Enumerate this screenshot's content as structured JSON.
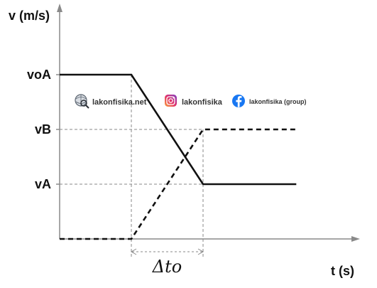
{
  "chart_data": {
    "type": "line",
    "title": "",
    "xlabel": "t (s)",
    "ylabel": "v (m/s)",
    "y_ticks": [
      "voA",
      "vB",
      "vA"
    ],
    "y_tick_values": [
      3,
      2,
      1
    ],
    "ylim": [
      0,
      3.5
    ],
    "xlim": [
      0,
      4.3
    ],
    "interval_label": "Δto",
    "interval": [
      1,
      2
    ],
    "grid": false,
    "series": [
      {
        "style": "solid",
        "color": "#111111",
        "x": [
          0,
          1,
          2,
          3.3
        ],
        "y": [
          3,
          3,
          1,
          1
        ]
      },
      {
        "style": "dashed",
        "color": "#111111",
        "x": [
          0,
          1,
          2,
          3.3
        ],
        "y": [
          0,
          0,
          2,
          2
        ]
      }
    ]
  },
  "watermark": {
    "website": "lakonfisika.net",
    "instagram": "lakonfisika",
    "facebook": "lakonfisika (group)",
    "website_icon": "globe-magnifier-icon",
    "instagram_icon": "instagram-icon",
    "facebook_icon": "facebook-icon"
  }
}
